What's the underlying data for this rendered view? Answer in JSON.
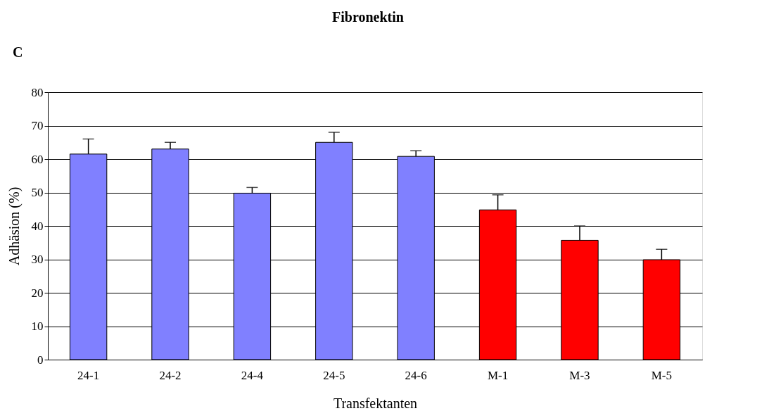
{
  "chart_data": {
    "type": "bar",
    "title": "Fibronektin",
    "xlabel": "Transfektanten",
    "ylabel": "Adhäsion (%)",
    "annotations": [
      "C"
    ],
    "categories": [
      "24-1",
      "24-2",
      "24-4",
      "24-5",
      "24-6",
      "M-1",
      "M-3",
      "M-5"
    ],
    "values": [
      61.5,
      63,
      49.8,
      65,
      60.8,
      44.8,
      35.7,
      29.9
    ],
    "errors": [
      [
        61.5,
        66
      ],
      [
        63,
        65
      ],
      [
        49.8,
        51.5
      ],
      [
        65,
        68
      ],
      [
        60.8,
        62.5
      ],
      [
        44.8,
        49.3
      ],
      [
        35.7,
        40
      ],
      [
        29.9,
        33
      ]
    ],
    "colors": [
      "#8080ff",
      "#8080ff",
      "#8080ff",
      "#8080ff",
      "#8080ff",
      "#ff0000",
      "#ff0000",
      "#ff0000"
    ],
    "ylim": [
      0,
      80
    ],
    "yticks": [
      0,
      10,
      20,
      30,
      40,
      50,
      60,
      70,
      80
    ],
    "grid": "y"
  }
}
